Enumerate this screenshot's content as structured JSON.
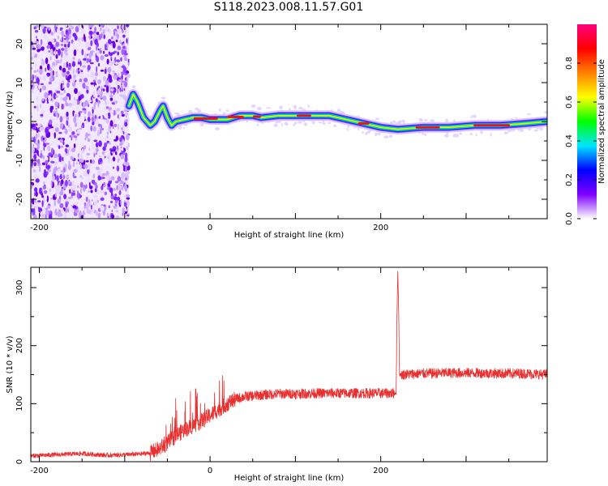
{
  "title": "S118.2023.008.11.57.G01",
  "chart_data": [
    {
      "type": "heatmap",
      "xlabel": "Height of straight line (km)",
      "ylabel": "Frequency (Hz)",
      "xlim": [
        -210,
        395
      ],
      "ylim": [
        -25,
        25
      ],
      "x_ticks": [
        "-200",
        "0",
        "200"
      ],
      "y_ticks": [
        "-20",
        "-10",
        "0",
        "10",
        "20"
      ],
      "colorbar": {
        "label": "Normalized spectral amplitude",
        "range": [
          0,
          1
        ],
        "ticks": [
          "0.0",
          "0.2",
          "0.4",
          "0.6",
          "0.8"
        ],
        "colors": [
          "#ffffff",
          "#7f00ff",
          "#0000ff",
          "#00e5ff",
          "#00ff00",
          "#ffff00",
          "#ff8000",
          "#ff0000",
          "#ff0080"
        ]
      },
      "noise_region_x": [
        -210,
        -95
      ],
      "ridge": {
        "x": [
          -95,
          -90,
          -85,
          -78,
          -70,
          -65,
          -58,
          -55,
          -50,
          -45,
          -40,
          -30,
          -20,
          -10,
          0,
          20,
          35,
          50,
          60,
          80,
          100,
          120,
          140,
          160,
          180,
          200,
          220,
          250,
          280,
          310,
          340,
          370,
          395
        ],
        "y": [
          4,
          7,
          5,
          1,
          -1,
          0,
          3,
          4,
          1,
          -1,
          0,
          0.5,
          1,
          1,
          0.5,
          0.5,
          1.5,
          1.5,
          1,
          1.5,
          1.5,
          1.5,
          1.5,
          0.5,
          -0.5,
          -1.5,
          -2,
          -1.5,
          -1.5,
          -1,
          -1,
          -0.5,
          0
        ]
      }
    },
    {
      "type": "line",
      "xlabel": "Height of straight line (km)",
      "ylabel": "SNR (10 * v/v)",
      "xlim": [
        -210,
        395
      ],
      "ylim": [
        0,
        335
      ],
      "x_ticks": [
        "-200",
        "0",
        "200"
      ],
      "y_ticks": [
        "0",
        "100",
        "200",
        "300"
      ],
      "color": "#e83030",
      "series": [
        {
          "x": [
            -210,
            -180,
            -150,
            -120,
            -100,
            -85,
            -70,
            -60,
            -50,
            -40,
            -30,
            -20,
            -10,
            0,
            10,
            20,
            30,
            40,
            60,
            80,
            100,
            130,
            160,
            190,
            218,
            219,
            220,
            221,
            222,
            250,
            280,
            310,
            340,
            370,
            395
          ],
          "y": [
            10,
            12,
            14,
            11,
            12,
            13,
            15,
            22,
            32,
            45,
            55,
            62,
            70,
            80,
            90,
            100,
            108,
            112,
            115,
            117,
            117,
            118,
            118,
            118,
            118,
            250,
            330,
            260,
            150,
            152,
            153,
            153,
            152,
            152,
            150
          ]
        }
      ]
    }
  ]
}
